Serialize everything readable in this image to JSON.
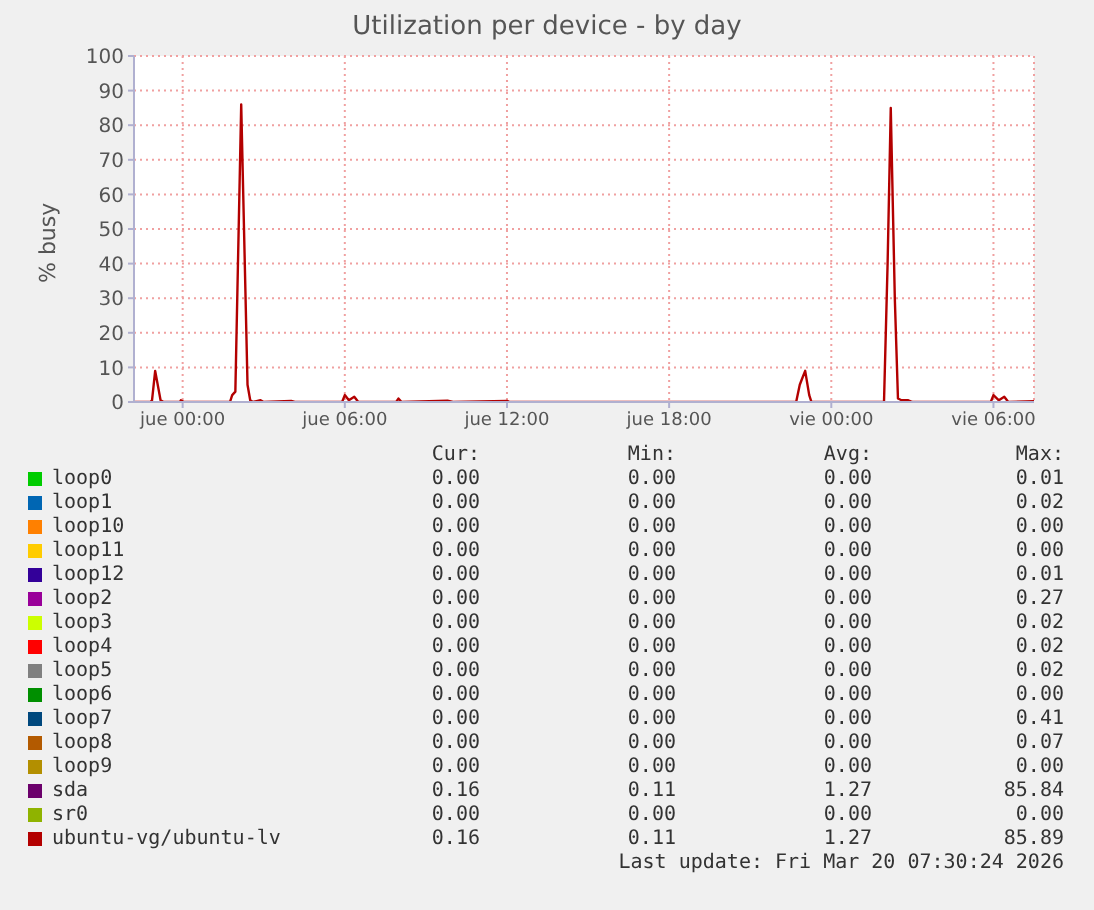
{
  "chart_data": {
    "type": "line",
    "title": "Utilization per device - by day",
    "ylabel": "% busy",
    "x": [
      "2026-03-18T22:12",
      "2026-03-18T22:48",
      "2026-03-18T22:52",
      "2026-03-18T22:59",
      "2026-03-18T23:11",
      "2026-03-18T23:18",
      "2026-03-18T23:54",
      "2026-03-18T23:56",
      "2026-03-19T00:03",
      "2026-03-19T01:45",
      "2026-03-19T01:50",
      "2026-03-19T01:57",
      "2026-03-19T02:10",
      "2026-03-19T02:24",
      "2026-03-19T02:30",
      "2026-03-19T02:36",
      "2026-03-19T02:53",
      "2026-03-19T03:00",
      "2026-03-19T04:01",
      "2026-03-19T04:09",
      "2026-03-19T05:54",
      "2026-03-19T06:00",
      "2026-03-19T06:09",
      "2026-03-19T06:21",
      "2026-03-19T06:30",
      "2026-03-19T07:54",
      "2026-03-19T07:59",
      "2026-03-19T08:06",
      "2026-03-19T09:48",
      "2026-03-19T10:00",
      "2026-03-19T12:00",
      "2026-03-19T12:06",
      "2026-03-19T22:42",
      "2026-03-19T22:50",
      "2026-03-19T22:56",
      "2026-03-19T23:02",
      "2026-03-19T23:11",
      "2026-03-19T23:16",
      "2026-03-20T01:57",
      "2026-03-20T02:05",
      "2026-03-20T02:12",
      "2026-03-20T02:21",
      "2026-03-20T02:28",
      "2026-03-20T02:36",
      "2026-03-20T02:51",
      "2026-03-20T03:00",
      "2026-03-20T05:54",
      "2026-03-20T06:00",
      "2026-03-20T06:12",
      "2026-03-20T06:24",
      "2026-03-20T06:33",
      "2026-03-20T07:30"
    ],
    "xlim": [
      "2026-03-18T22:12",
      "2026-03-20T07:30"
    ],
    "xticks": [
      {
        "value": "2026-03-19T00:00",
        "label": "jue 00:00"
      },
      {
        "value": "2026-03-19T06:00",
        "label": "jue 06:00"
      },
      {
        "value": "2026-03-19T12:00",
        "label": "jue 12:00"
      },
      {
        "value": "2026-03-19T18:00",
        "label": "jue 18:00"
      },
      {
        "value": "2026-03-20T00:00",
        "label": "vie 00:00"
      },
      {
        "value": "2026-03-20T06:00",
        "label": "vie 06:00"
      }
    ],
    "ylim": [
      0,
      100
    ],
    "yticks": [
      0,
      10,
      20,
      30,
      40,
      50,
      60,
      70,
      80,
      90,
      100
    ],
    "grid": true,
    "legend": "bottom",
    "marker": "none",
    "line_style": "solid",
    "series": [
      {
        "name": "loop0",
        "color": "#00cc00",
        "values": [
          null,
          null,
          null,
          null,
          null,
          null,
          null,
          null,
          null,
          null,
          null,
          null,
          null,
          null,
          null,
          null,
          null,
          null,
          null,
          null,
          null,
          null,
          null,
          null,
          null,
          null,
          null,
          null,
          null,
          null,
          null,
          null,
          null,
          null,
          null,
          null,
          null,
          null,
          null,
          null,
          null,
          null,
          null,
          null,
          null,
          null,
          null,
          null,
          null,
          null,
          null,
          null
        ]
      },
      {
        "name": "loop1",
        "color": "#0066b3",
        "values": [
          null,
          null,
          null,
          null,
          null,
          null,
          null,
          null,
          null,
          null,
          null,
          null,
          null,
          null,
          null,
          null,
          null,
          null,
          null,
          null,
          null,
          null,
          null,
          null,
          null,
          null,
          null,
          null,
          null,
          null,
          null,
          null,
          null,
          null,
          null,
          null,
          null,
          null,
          null,
          null,
          null,
          null,
          null,
          null,
          null,
          null,
          null,
          null,
          null,
          null,
          null,
          null
        ]
      },
      {
        "name": "loop10",
        "color": "#ff8000",
        "values": [
          null,
          null,
          null,
          null,
          null,
          null,
          null,
          null,
          null,
          null,
          null,
          null,
          null,
          null,
          null,
          null,
          null,
          null,
          null,
          null,
          null,
          null,
          null,
          null,
          null,
          null,
          null,
          null,
          null,
          null,
          null,
          null,
          null,
          null,
          null,
          null,
          null,
          null,
          null,
          null,
          null,
          null,
          null,
          null,
          null,
          null,
          null,
          null,
          null,
          null,
          null,
          null
        ]
      },
      {
        "name": "loop11",
        "color": "#ffcc00",
        "values": [
          null,
          null,
          null,
          null,
          null,
          null,
          null,
          null,
          null,
          null,
          null,
          null,
          null,
          null,
          null,
          null,
          null,
          null,
          null,
          null,
          null,
          null,
          null,
          null,
          null,
          null,
          null,
          null,
          null,
          null,
          null,
          null,
          null,
          null,
          null,
          null,
          null,
          null,
          null,
          null,
          null,
          null,
          null,
          null,
          null,
          null,
          null,
          null,
          null,
          null,
          null,
          null
        ]
      },
      {
        "name": "loop12",
        "color": "#330099",
        "values": [
          null,
          null,
          null,
          null,
          null,
          null,
          null,
          null,
          null,
          null,
          null,
          null,
          null,
          null,
          null,
          null,
          null,
          null,
          null,
          null,
          null,
          null,
          null,
          null,
          null,
          null,
          null,
          null,
          null,
          null,
          null,
          null,
          null,
          null,
          null,
          null,
          null,
          null,
          null,
          null,
          null,
          null,
          null,
          null,
          null,
          null,
          null,
          null,
          null,
          null,
          null,
          null
        ]
      },
      {
        "name": "loop2",
        "color": "#990099",
        "values": [
          null,
          null,
          null,
          null,
          null,
          null,
          null,
          null,
          null,
          null,
          null,
          null,
          null,
          null,
          null,
          null,
          null,
          null,
          null,
          null,
          null,
          null,
          null,
          null,
          null,
          null,
          null,
          null,
          null,
          null,
          null,
          null,
          null,
          null,
          null,
          null,
          null,
          null,
          null,
          null,
          null,
          null,
          null,
          null,
          null,
          null,
          null,
          null,
          null,
          null,
          null,
          null
        ]
      },
      {
        "name": "loop3",
        "color": "#ccff00",
        "values": [
          null,
          null,
          null,
          null,
          null,
          null,
          null,
          null,
          null,
          null,
          null,
          null,
          null,
          null,
          null,
          null,
          null,
          null,
          null,
          null,
          null,
          null,
          null,
          null,
          null,
          null,
          null,
          null,
          null,
          null,
          null,
          null,
          null,
          null,
          null,
          null,
          null,
          null,
          null,
          null,
          null,
          null,
          null,
          null,
          null,
          null,
          null,
          null,
          null,
          null,
          null,
          null
        ]
      },
      {
        "name": "loop4",
        "color": "#ff0000",
        "values": [
          null,
          null,
          null,
          null,
          null,
          null,
          null,
          null,
          null,
          null,
          null,
          null,
          null,
          null,
          null,
          null,
          null,
          null,
          null,
          null,
          null,
          null,
          null,
          null,
          null,
          null,
          null,
          null,
          null,
          null,
          null,
          null,
          null,
          null,
          null,
          null,
          null,
          null,
          null,
          null,
          null,
          null,
          null,
          null,
          null,
          null,
          null,
          null,
          null,
          null,
          null,
          null
        ]
      },
      {
        "name": "loop5",
        "color": "#808080",
        "values": [
          null,
          null,
          null,
          null,
          null,
          null,
          null,
          null,
          null,
          null,
          null,
          null,
          null,
          null,
          null,
          null,
          null,
          null,
          null,
          null,
          null,
          null,
          null,
          null,
          null,
          null,
          null,
          null,
          null,
          null,
          null,
          null,
          null,
          null,
          null,
          null,
          null,
          null,
          null,
          null,
          null,
          null,
          null,
          null,
          null,
          null,
          null,
          null,
          null,
          null,
          null,
          null
        ]
      },
      {
        "name": "loop6",
        "color": "#008f00",
        "values": [
          null,
          null,
          null,
          null,
          null,
          null,
          null,
          null,
          null,
          null,
          null,
          null,
          null,
          null,
          null,
          null,
          null,
          null,
          null,
          null,
          null,
          null,
          null,
          null,
          null,
          null,
          null,
          null,
          null,
          null,
          null,
          null,
          null,
          null,
          null,
          null,
          null,
          null,
          null,
          null,
          null,
          null,
          null,
          null,
          null,
          null,
          null,
          null,
          null,
          null,
          null,
          null
        ]
      },
      {
        "name": "loop7",
        "color": "#00487d",
        "values": [
          null,
          null,
          null,
          null,
          null,
          null,
          null,
          null,
          null,
          null,
          null,
          null,
          null,
          null,
          null,
          null,
          null,
          null,
          null,
          null,
          null,
          null,
          null,
          null,
          null,
          null,
          null,
          null,
          null,
          null,
          null,
          null,
          null,
          null,
          null,
          null,
          null,
          null,
          null,
          null,
          null,
          null,
          null,
          null,
          null,
          null,
          null,
          null,
          null,
          null,
          null,
          null
        ]
      },
      {
        "name": "loop8",
        "color": "#b35a00",
        "values": [
          null,
          null,
          null,
          null,
          null,
          null,
          null,
          null,
          null,
          null,
          null,
          null,
          null,
          null,
          null,
          null,
          null,
          null,
          null,
          null,
          null,
          null,
          null,
          null,
          null,
          null,
          null,
          null,
          null,
          null,
          null,
          null,
          null,
          null,
          null,
          null,
          null,
          null,
          null,
          null,
          null,
          null,
          null,
          null,
          null,
          null,
          null,
          null,
          null,
          null,
          null,
          null
        ]
      },
      {
        "name": "loop9",
        "color": "#b38f00",
        "values": [
          null,
          null,
          null,
          null,
          null,
          null,
          null,
          null,
          null,
          null,
          null,
          null,
          null,
          null,
          null,
          null,
          null,
          null,
          null,
          null,
          null,
          null,
          null,
          null,
          null,
          null,
          null,
          null,
          null,
          null,
          null,
          null,
          null,
          null,
          null,
          null,
          null,
          null,
          null,
          null,
          null,
          null,
          null,
          null,
          null,
          null,
          null,
          null,
          null,
          null,
          null,
          null
        ]
      },
      {
        "name": "sda",
        "color": "#6b006b",
        "values": [
          null,
          null,
          null,
          null,
          null,
          null,
          null,
          null,
          null,
          null,
          null,
          null,
          null,
          null,
          null,
          null,
          null,
          null,
          null,
          null,
          null,
          null,
          null,
          null,
          null,
          null,
          null,
          null,
          null,
          null,
          null,
          null,
          null,
          null,
          null,
          null,
          null,
          null,
          null,
          null,
          null,
          null,
          null,
          null,
          null,
          null,
          null,
          null,
          null,
          null,
          null,
          null
        ]
      },
      {
        "name": "sr0",
        "color": "#8fb300",
        "values": [
          null,
          null,
          null,
          null,
          null,
          null,
          null,
          null,
          null,
          null,
          null,
          null,
          null,
          null,
          null,
          null,
          null,
          null,
          null,
          null,
          null,
          null,
          null,
          null,
          null,
          null,
          null,
          null,
          null,
          null,
          null,
          null,
          null,
          null,
          null,
          null,
          null,
          null,
          null,
          null,
          null,
          null,
          null,
          null,
          null,
          null,
          null,
          null,
          null,
          null,
          null,
          null
        ]
      },
      {
        "name": "ubuntu-vg/ubuntu-lv",
        "color": "#b30000",
        "values": [
          0,
          0,
          0.5,
          9,
          0.5,
          0,
          0,
          0.5,
          0,
          0,
          2,
          3,
          86,
          5,
          0.5,
          0,
          0.5,
          0,
          0.3,
          0,
          0,
          2,
          0.5,
          1.5,
          0,
          0,
          1,
          0,
          0.4,
          0,
          0.3,
          0,
          0,
          5,
          7,
          9,
          2,
          0,
          0,
          40,
          85,
          30,
          1,
          0.5,
          0.5,
          0,
          0,
          2,
          0.5,
          1.5,
          0,
          0.2
        ]
      }
    ],
    "annotations": [
      "Cur:",
      "Min:",
      "Avg:",
      "Max:",
      "0.00",
      "0.00",
      "0.00",
      "0.01",
      "0.00",
      "0.00",
      "0.00",
      "0.02",
      "0.00",
      "0.00",
      "0.00",
      "0.00",
      "0.00",
      "0.00",
      "0.00",
      "0.00",
      "0.00",
      "0.00",
      "0.00",
      "0.01",
      "0.00",
      "0.00",
      "0.00",
      "0.27",
      "0.00",
      "0.00",
      "0.00",
      "0.02",
      "0.00",
      "0.00",
      "0.00",
      "0.02",
      "0.00",
      "0.00",
      "0.00",
      "0.02",
      "0.00",
      "0.00",
      "0.00",
      "0.00",
      "0.00",
      "0.00",
      "0.00",
      "0.41",
      "0.00",
      "0.00",
      "0.00",
      "0.07",
      "0.00",
      "0.00",
      "0.00",
      "0.00",
      "0.16",
      "0.11",
      "1.27",
      "85.84",
      "0.00",
      "0.00",
      "0.00",
      "0.00",
      "0.16",
      "0.11",
      "1.27",
      "85.89",
      "Last update: Fri Mar 20 07:30:24 2026"
    ]
  }
}
